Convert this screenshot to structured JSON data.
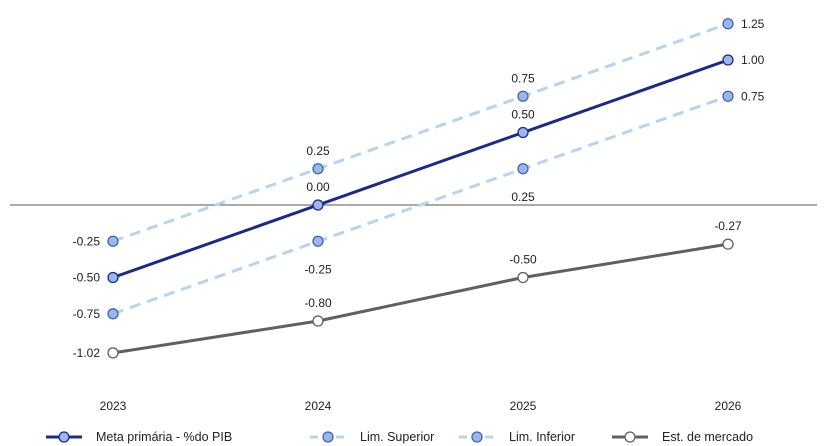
{
  "chart_data": {
    "type": "line",
    "categories": [
      "2023",
      "2024",
      "2025",
      "2026"
    ],
    "series": [
      {
        "name": "Lim. Superior",
        "values": [
          -0.25,
          0.25,
          0.75,
          1.25
        ],
        "labels": [
          "-0.25",
          "0.25",
          "0.75",
          "1.25"
        ],
        "style": "dashed",
        "line_color": "#b8d4ee",
        "marker_fill": "#9bb7ea",
        "marker_stroke": "#3d63b6"
      },
      {
        "name": "Lim. Inferior",
        "values": [
          -0.75,
          -0.25,
          0.25,
          0.75
        ],
        "labels": [
          "-0.75",
          "-0.25",
          "0.25",
          "0.75"
        ],
        "style": "dashed",
        "line_color": "#b8d4ee",
        "marker_fill": "#9bb7ea",
        "marker_stroke": "#3d63b6"
      },
      {
        "name": "Est. de mercado",
        "values": [
          -1.02,
          -0.8,
          -0.5,
          -0.27
        ],
        "labels": [
          "-1.02",
          "-0.80",
          "-0.50",
          "-0.27"
        ],
        "style": "solid",
        "line_color": "#606060",
        "marker_fill": "#ffffff",
        "marker_stroke": "#606060"
      },
      {
        "name": "Meta primária - %do PIB",
        "values": [
          -0.5,
          0.0,
          0.5,
          1.0
        ],
        "labels": [
          "-0.50",
          "0.00",
          "0.50",
          "1.00"
        ],
        "style": "solid",
        "line_color": "#1a2a8c",
        "marker_fill": "#9bb7ea",
        "marker_stroke": "#1a2a8c"
      }
    ],
    "legend_order": [
      "Meta primária - %do PIB",
      "Lim. Superior",
      "Lim. Inferior",
      "Est. de mercado"
    ],
    "ylim": [
      -1.3,
      1.4
    ],
    "zero_line": true,
    "grid": false,
    "legend": "bottom"
  }
}
